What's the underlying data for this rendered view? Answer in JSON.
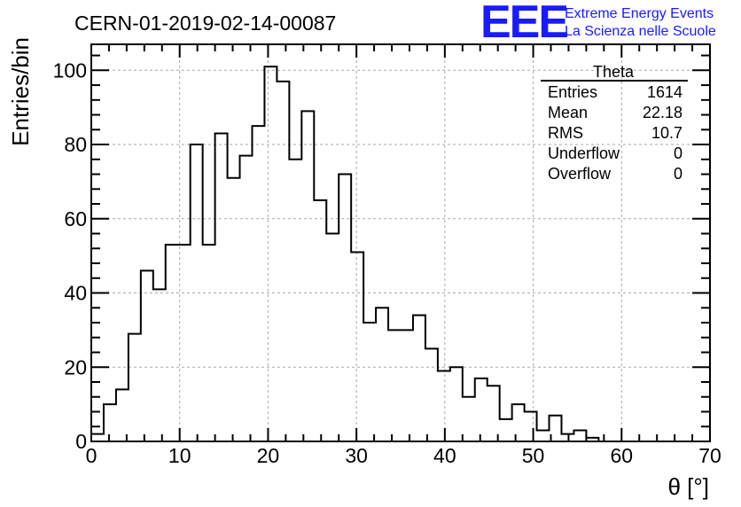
{
  "chart_data": {
    "type": "histogram",
    "title": "CERN-01-2019-02-14-00087",
    "xlabel": "θ [°]",
    "ylabel": "Entries/bin",
    "xlim": [
      0,
      70
    ],
    "ylim": [
      0,
      107
    ],
    "grid": true,
    "bin_width": 1.4,
    "bin_start": 0,
    "values": [
      2,
      10,
      14,
      29,
      46,
      41,
      53,
      53,
      80,
      53,
      83,
      71,
      77,
      85,
      101,
      97,
      76,
      89,
      65,
      56,
      72,
      51,
      32,
      36,
      30,
      30,
      34,
      25,
      19,
      20,
      12,
      17,
      15,
      6,
      10,
      8,
      3,
      7,
      2,
      3,
      1
    ],
    "x_ticks": [
      0,
      10,
      20,
      30,
      40,
      50,
      60,
      70
    ],
    "y_ticks": [
      0,
      20,
      40,
      60,
      80,
      100
    ],
    "stats": {
      "name": "Theta",
      "rows": [
        {
          "label": "Entries",
          "value": "1614"
        },
        {
          "label": "Mean",
          "value": "22.18"
        },
        {
          "label": "RMS",
          "value": "10.7"
        },
        {
          "label": "Underflow",
          "value": "0"
        },
        {
          "label": "Overflow",
          "value": "0"
        }
      ]
    }
  },
  "brand": {
    "logo": "EEE",
    "line1": "Extreme Energy Events",
    "line2": "La Scienza nelle Scuole"
  },
  "colors": {
    "brand": "#1a1aff",
    "line": "#000000",
    "grid": "#aaaaaa"
  }
}
